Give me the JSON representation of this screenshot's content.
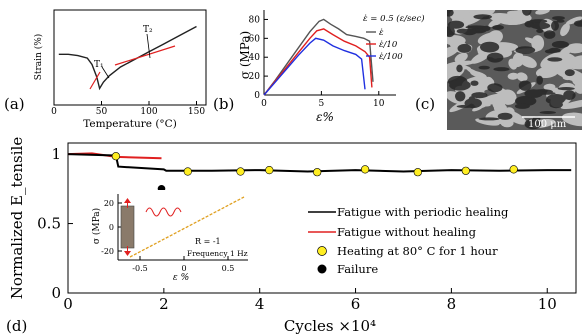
{
  "panels": {
    "a": {
      "label": "(a)",
      "chart_data": {
        "type": "line",
        "xlabel": "Temperature (°C)",
        "ylabel": "Strain (%)",
        "xlim": [
          0,
          160
        ],
        "xticks": [
          0,
          50,
          100,
          150
        ],
        "annotations": [
          "T₁",
          "T₂"
        ],
        "series": [
          {
            "x": [
              5,
              15,
              25,
              35,
              40,
              45,
              48,
              52,
              58,
              70,
              85,
              100,
              115,
              130,
              145,
              150
            ],
            "y": [
              0.6,
              0.6,
              0.59,
              0.57,
              0.52,
              0.42,
              0.33,
              0.38,
              0.43,
              0.5,
              0.56,
              0.62,
              0.68,
              0.74,
              0.8,
              0.82
            ]
          }
        ]
      }
    },
    "b": {
      "label": "(b)",
      "chart_data": {
        "type": "line",
        "xlabel": "ε%",
        "ylabel": "σ (MPa)",
        "xlim": [
          0,
          11.5
        ],
        "ylim": [
          0,
          90
        ],
        "xticks": [
          0,
          5,
          10
        ],
        "yticks": [
          0,
          20,
          40,
          60,
          80
        ],
        "legend_title": "ε̇ = 0.5 (ε/sec)",
        "series": [
          {
            "name": "ε̇",
            "color": "#555555",
            "x": [
              0,
              1,
              2,
              3,
              4,
              4.8,
              5.2,
              5.8,
              6.5,
              7.2,
              8.0,
              8.7,
              9.2,
              9.5
            ],
            "y": [
              0,
              16,
              33,
              50,
              67,
              78,
              80,
              75,
              70,
              64,
              62,
              60,
              57,
              14
            ]
          },
          {
            "name": "ε̇/10",
            "color": "#e02020",
            "x": [
              0,
              1,
              2,
              3,
              4,
              4.6,
              5.2,
              6.0,
              7.0,
              8.0,
              8.8,
              9.2,
              9.4
            ],
            "y": [
              0,
              15,
              30,
              45,
              60,
              68,
              70,
              64,
              57,
              52,
              46,
              40,
              8
            ]
          },
          {
            "name": "ε̇/100",
            "color": "#2030e0",
            "x": [
              0,
              1,
              2,
              3,
              4,
              4.5,
              5.2,
              6.0,
              7.0,
              8.0,
              8.5,
              8.8
            ],
            "y": [
              0,
              14,
              28,
              42,
              55,
              60,
              58,
              52,
              47,
              43,
              38,
              6
            ]
          }
        ]
      }
    },
    "c": {
      "label": "(c)",
      "scale_bar": "100 μm"
    },
    "d": {
      "label": "(d)",
      "chart_data": {
        "type": "line",
        "xlabel": "Cycles ×10⁴",
        "ylabel": "Normalized E_tensile",
        "xlim": [
          0,
          10.6
        ],
        "ylim": [
          0,
          1.08
        ],
        "xticks": [
          0,
          2,
          4,
          6,
          8,
          10
        ],
        "yticks": [
          0.5,
          1
        ],
        "series": [
          {
            "name": "Fatigue with periodic healing",
            "color": "#000000",
            "x": [
              0,
              1,
              1.05,
              2,
              2.05,
              3,
              4,
              5,
              6,
              7,
              8,
              9,
              10,
              10.5
            ],
            "y": [
              1.0,
              0.99,
              0.91,
              0.89,
              0.88,
              0.88,
              0.885,
              0.875,
              0.885,
              0.875,
              0.885,
              0.88,
              0.885,
              0.885
            ]
          },
          {
            "name": "Fatigue without healing",
            "color": "#e02020",
            "x": [
              0,
              0.5,
              1,
              1.5,
              1.95
            ],
            "y": [
              1.0,
              1.005,
              0.98,
              0.975,
              0.97
            ]
          }
        ],
        "markers": [
          {
            "name": "Heating at 80° C for 1 hour",
            "color": "#ffee22",
            "x": [
              1.0,
              2.5,
              3.6,
              4.2,
              5.2,
              6.2,
              7.3,
              8.3,
              9.3
            ],
            "y": [
              0.985,
              0.875,
              0.875,
              0.885,
              0.87,
              0.89,
              0.87,
              0.88,
              0.89
            ]
          },
          {
            "name": "Failure",
            "color": "#000000",
            "x": [
              1.95
            ],
            "y": [
              0.75
            ]
          }
        ]
      },
      "inset": {
        "xlabel": "ε %",
        "ylabel": "σ (MPa)",
        "xticks": [
          "-0.5",
          "0",
          "0.5"
        ],
        "yticks": [
          "20",
          "0",
          "-20"
        ],
        "ratio_label": "R = -1",
        "freq_label": "Frequency 1 Hz",
        "line_color": "#e0a020"
      }
    }
  }
}
